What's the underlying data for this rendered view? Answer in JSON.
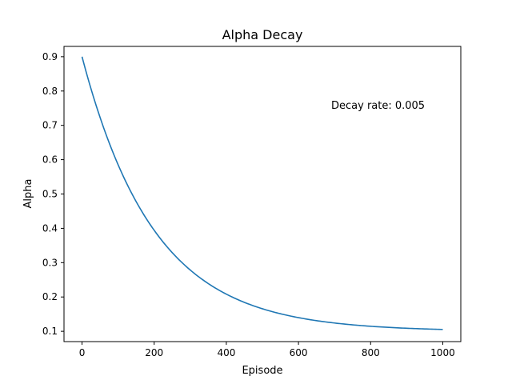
{
  "chart_data": {
    "type": "line",
    "title": "Alpha Decay",
    "xlabel": "Episode",
    "ylabel": "Alpha",
    "xlim": [
      -50,
      1050
    ],
    "ylim": [
      0.07,
      0.93
    ],
    "xticks": [
      0,
      200,
      400,
      600,
      800,
      1000
    ],
    "yticks": [
      0.1,
      0.2,
      0.3,
      0.4,
      0.5,
      0.6,
      0.7,
      0.8,
      0.9
    ],
    "xtick_labels": [
      "0",
      "200",
      "400",
      "600",
      "800",
      "1000"
    ],
    "ytick_labels": [
      "0.1",
      "0.2",
      "0.3",
      "0.4",
      "0.5",
      "0.6",
      "0.7",
      "0.8",
      "0.9"
    ],
    "grid": false,
    "annotation": "Decay rate: 0.005",
    "line_color": "#1f77b4",
    "series": [
      {
        "x": [
          0,
          50,
          100,
          150,
          200,
          250,
          300,
          350,
          400,
          450,
          500,
          550,
          600,
          650,
          700,
          750,
          800,
          850,
          900,
          950,
          1000
        ],
        "values": [
          0.9,
          0.723,
          0.585,
          0.478,
          0.394,
          0.329,
          0.279,
          0.24,
          0.209,
          0.185,
          0.167,
          0.152,
          0.141,
          0.132,
          0.125,
          0.12,
          0.116,
          0.113,
          0.111,
          0.109,
          0.107
        ]
      }
    ]
  }
}
